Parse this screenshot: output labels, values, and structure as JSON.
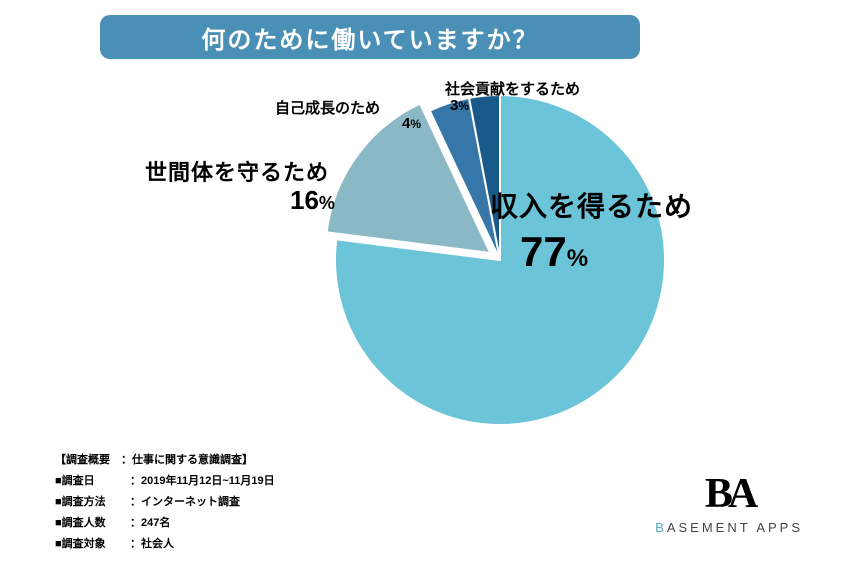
{
  "title": "何のために働いていますか？",
  "title_bar_color": "#4a8fb5",
  "chart": {
    "type": "pie",
    "background_color": "#ffffff",
    "stroke_color": "#ffffff",
    "stroke_width": 2,
    "slices": [
      {
        "label": "収入を得るため",
        "value": 77,
        "color": "#6cc4d9",
        "exploded": false
      },
      {
        "label": "世間体を守るため",
        "value": 16,
        "color": "#8bb8c5",
        "exploded": true,
        "explode_distance": 12
      },
      {
        "label": "自己成長のため",
        "value": 4,
        "color": "#3776a8",
        "exploded": false
      },
      {
        "label": "社会貢献をするため",
        "value": 3,
        "color": "#1a5a8a",
        "exploded": false
      }
    ],
    "label_fontsize_main": 28,
    "label_fontsize_pct_main": 42,
    "label_fontsize_other": 22,
    "label_color": "#000000"
  },
  "metadata": {
    "header": "【調査概要　：仕事に関する意識調査】",
    "rows": [
      {
        "label": "■調査日",
        "value": "：2019年11月12日~11月19日"
      },
      {
        "label": "■調査方法",
        "value": "：インターネット調査"
      },
      {
        "label": "■調査人数",
        "value": "：247名"
      },
      {
        "label": "■調査対象",
        "value": "：社会人"
      }
    ]
  },
  "logo": {
    "icon": "BA",
    "text_accent": "B",
    "text_rest": "ASEMENT APPS",
    "accent_color": "#5aa8c4"
  }
}
